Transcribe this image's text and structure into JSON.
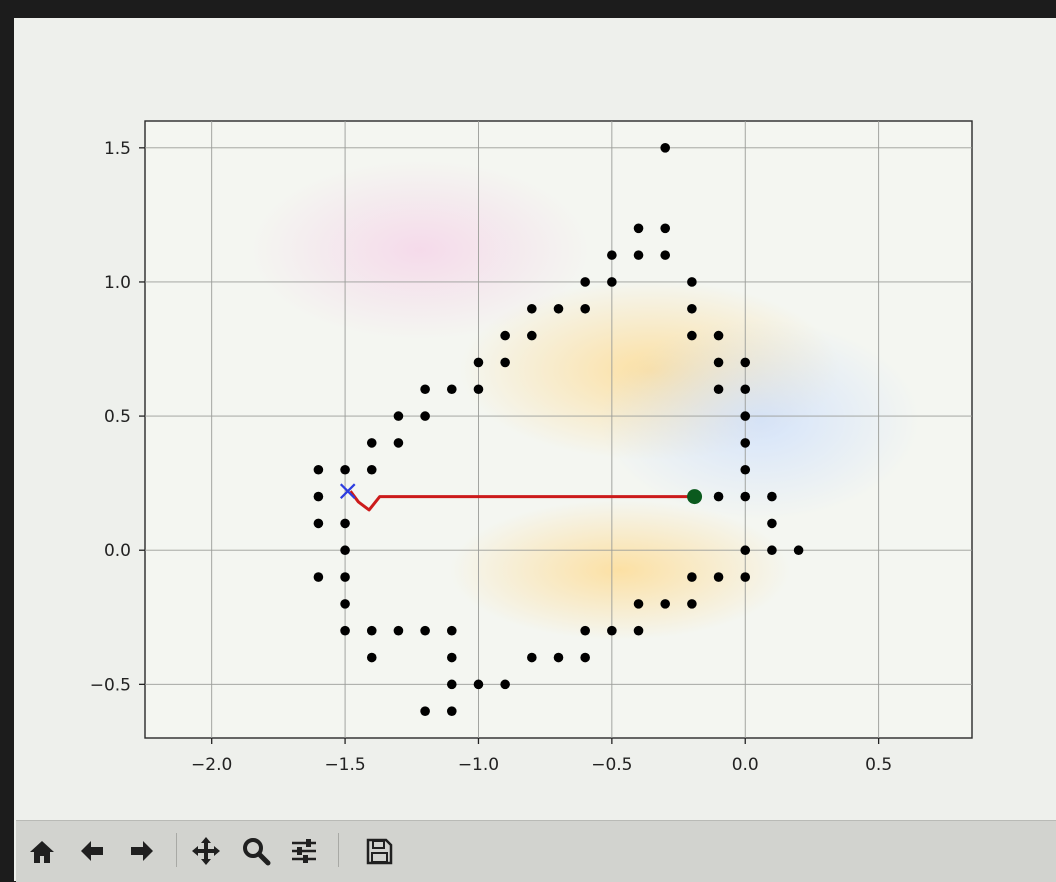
{
  "chart_data": {
    "type": "scatter",
    "title": "",
    "xlabel": "",
    "ylabel": "",
    "xlim": [
      -2.25,
      0.85
    ],
    "ylim": [
      -0.7,
      1.6
    ],
    "grid": true,
    "x_ticks": [
      -2.0,
      -1.5,
      -1.0,
      -0.5,
      0.0,
      0.5
    ],
    "x_tick_labels": [
      "−2.0",
      "−1.5",
      "−1.0",
      "−0.5",
      "0.0",
      "0.5"
    ],
    "y_ticks": [
      -0.5,
      0.0,
      0.5,
      1.0,
      1.5
    ],
    "y_tick_labels": [
      "−0.5",
      "0.0",
      "0.5",
      "1.0",
      "1.5"
    ],
    "obstacles": [
      [
        -0.3,
        1.5
      ],
      [
        -0.4,
        1.2
      ],
      [
        -0.3,
        1.2
      ],
      [
        -0.5,
        1.1
      ],
      [
        -0.4,
        1.1
      ],
      [
        -0.3,
        1.1
      ],
      [
        -0.6,
        1.0
      ],
      [
        -0.5,
        1.0
      ],
      [
        -0.2,
        1.0
      ],
      [
        -0.8,
        0.9
      ],
      [
        -0.7,
        0.9
      ],
      [
        -0.6,
        0.9
      ],
      [
        -0.2,
        0.9
      ],
      [
        -0.9,
        0.8
      ],
      [
        -0.8,
        0.8
      ],
      [
        -0.2,
        0.8
      ],
      [
        -0.1,
        0.8
      ],
      [
        -1.0,
        0.7
      ],
      [
        -0.9,
        0.7
      ],
      [
        -0.1,
        0.7
      ],
      [
        0.0,
        0.7
      ],
      [
        -1.2,
        0.6
      ],
      [
        -1.1,
        0.6
      ],
      [
        -1.0,
        0.6
      ],
      [
        -0.1,
        0.6
      ],
      [
        0.0,
        0.6
      ],
      [
        -1.3,
        0.5
      ],
      [
        -1.2,
        0.5
      ],
      [
        0.0,
        0.5
      ],
      [
        -1.4,
        0.4
      ],
      [
        -1.3,
        0.4
      ],
      [
        0.0,
        0.4
      ],
      [
        -1.6,
        0.3
      ],
      [
        -1.5,
        0.3
      ],
      [
        -1.4,
        0.3
      ],
      [
        0.0,
        0.3
      ],
      [
        -1.6,
        0.2
      ],
      [
        -0.1,
        0.2
      ],
      [
        0.0,
        0.2
      ],
      [
        0.1,
        0.2
      ],
      [
        -1.6,
        0.1
      ],
      [
        -1.5,
        0.1
      ],
      [
        0.1,
        0.1
      ],
      [
        -1.5,
        0.0
      ],
      [
        0.0,
        0.0
      ],
      [
        0.1,
        0.0
      ],
      [
        0.2,
        0.0
      ],
      [
        -1.6,
        -0.1
      ],
      [
        -1.5,
        -0.1
      ],
      [
        -0.2,
        -0.1
      ],
      [
        -0.1,
        -0.1
      ],
      [
        0.0,
        -0.1
      ],
      [
        -1.5,
        -0.2
      ],
      [
        -0.4,
        -0.2
      ],
      [
        -0.3,
        -0.2
      ],
      [
        -0.2,
        -0.2
      ],
      [
        -1.5,
        -0.3
      ],
      [
        -1.4,
        -0.3
      ],
      [
        -1.3,
        -0.3
      ],
      [
        -1.2,
        -0.3
      ],
      [
        -1.1,
        -0.3
      ],
      [
        -0.6,
        -0.3
      ],
      [
        -0.5,
        -0.3
      ],
      [
        -0.4,
        -0.3
      ],
      [
        -1.4,
        -0.4
      ],
      [
        -1.1,
        -0.4
      ],
      [
        -0.8,
        -0.4
      ],
      [
        -0.7,
        -0.4
      ],
      [
        -0.6,
        -0.4
      ],
      [
        -1.1,
        -0.5
      ],
      [
        -1.0,
        -0.5
      ],
      [
        -0.9,
        -0.5
      ],
      [
        -1.2,
        -0.6
      ],
      [
        -1.1,
        -0.6
      ]
    ],
    "path": [
      [
        -1.48,
        0.22
      ],
      [
        -1.45,
        0.18
      ],
      [
        -1.41,
        0.15
      ],
      [
        -1.37,
        0.2
      ],
      [
        -0.19,
        0.2
      ]
    ],
    "start": [
      -1.49,
      0.22
    ],
    "goal": [
      -0.19,
      0.2
    ],
    "colors": {
      "obstacle": "#000000",
      "path": "#cc1b1b",
      "start": "#2d3de0",
      "goal": "#0b5a1e"
    }
  },
  "toolbar": {
    "icons": [
      "home-icon",
      "back-arrow-icon",
      "forward-arrow-icon",
      "pan-icon",
      "zoom-icon",
      "configure-subplots-icon",
      "save-icon"
    ]
  }
}
